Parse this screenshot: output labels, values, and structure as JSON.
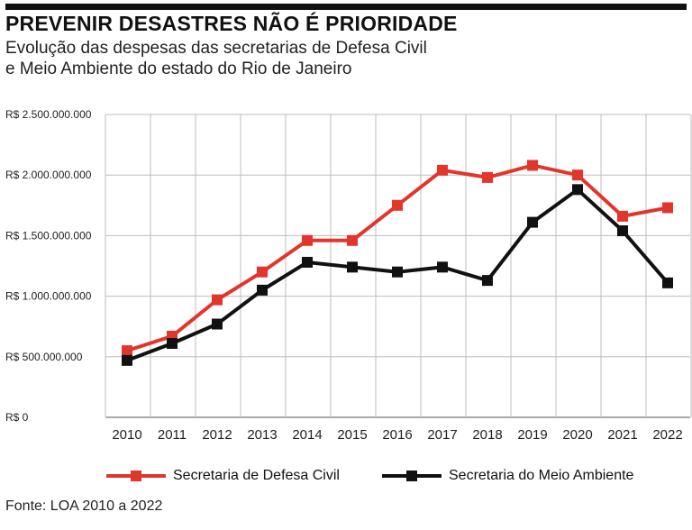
{
  "header": {
    "title": "PREVENIR DESASTRES NÃO É PRIORIDADE",
    "subtitle_line1": "Evolução das despesas das secretarias de Defesa Civil",
    "subtitle_line2": "e Meio Ambiente do estado do Rio de Janeiro"
  },
  "footer": {
    "source": "Fonte: LOA 2010 a 2022"
  },
  "colors": {
    "defesa_civil": "#e2362c",
    "meio_ambiente": "#111111",
    "grid": "#bdbdbd"
  },
  "chart_data": {
    "type": "line",
    "x": [
      "2010",
      "2011",
      "2012",
      "2013",
      "2014",
      "2015",
      "2016",
      "2017",
      "2018",
      "2019",
      "2020",
      "2021",
      "2022"
    ],
    "ylim": [
      0,
      2500000000
    ],
    "yticks": [
      0,
      500000000,
      1000000000,
      1500000000,
      2000000000,
      2500000000
    ],
    "ytick_labels": [
      "R$ 0",
      "R$ 500.000.000",
      "R$ 1.000.000.000",
      "R$ 1.500.000.000",
      "R$ 2.000.000.000",
      "R$ 2.500.000.000"
    ],
    "grid": true,
    "legend_position": "bottom",
    "series": [
      {
        "name": "Secretaria de Defesa Civil",
        "color": "#e2362c",
        "marker": "square",
        "values": [
          550000000,
          670000000,
          970000000,
          1200000000,
          1460000000,
          1460000000,
          1750000000,
          2040000000,
          1980000000,
          2080000000,
          2000000000,
          1660000000,
          1730000000
        ]
      },
      {
        "name": "Secretaria do Meio Ambiente",
        "color": "#111111",
        "marker": "square",
        "values": [
          470000000,
          610000000,
          770000000,
          1050000000,
          1280000000,
          1240000000,
          1200000000,
          1240000000,
          1130000000,
          1610000000,
          1880000000,
          1540000000,
          1110000000
        ]
      }
    ]
  }
}
